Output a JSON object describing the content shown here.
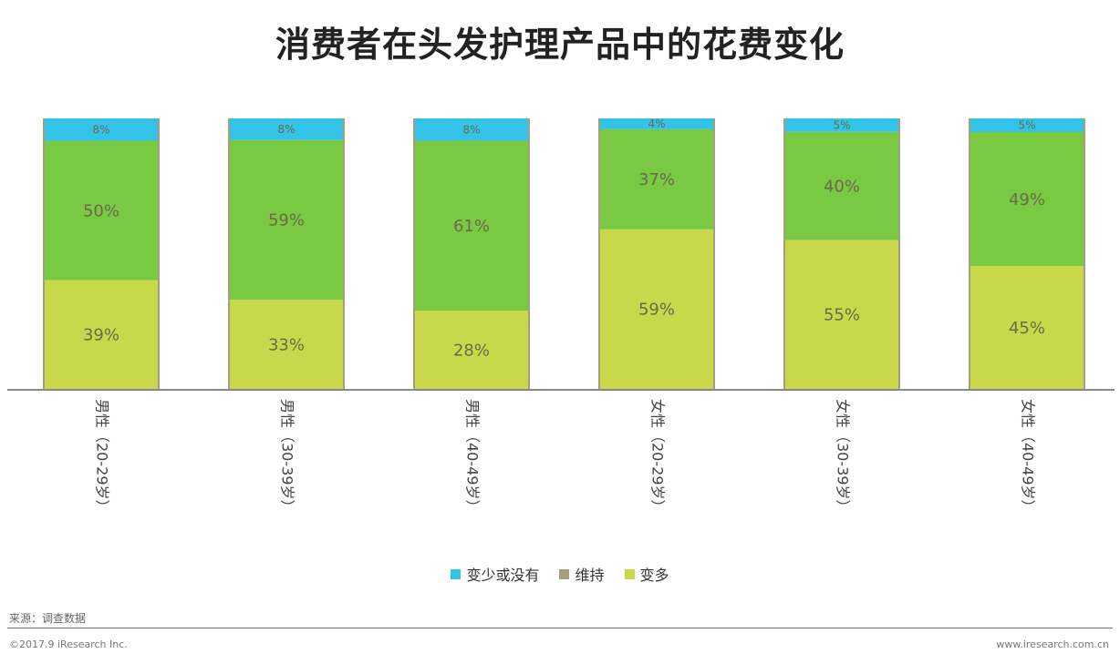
{
  "chart_data": {
    "type": "bar",
    "stacked": true,
    "title": "消费者在头发护理产品中的花费变化",
    "categories": [
      "男性（20-29岁）",
      "男性（30-39岁）",
      "男性（40-49岁）",
      "女性（20-29岁）",
      "女性（30-39岁）",
      "女性（40-49岁）"
    ],
    "series": [
      {
        "name": "变多",
        "color": "#c9d84a",
        "values": [
          39,
          33,
          28,
          59,
          55,
          45
        ]
      },
      {
        "name": "维持",
        "color": "#7ac943",
        "values": [
          50,
          59,
          61,
          37,
          40,
          49
        ]
      },
      {
        "name": "变少或没有",
        "color": "#33c3e8",
        "values": [
          8,
          8,
          8,
          4,
          5,
          5
        ]
      }
    ],
    "labels": [
      [
        "39%",
        "33%",
        "28%",
        "59%",
        "55%",
        "45%"
      ],
      [
        "50%",
        "59%",
        "61%",
        "37%",
        "40%",
        "49%"
      ],
      [
        "8%",
        "8%",
        "8%",
        "4%",
        "5%",
        "5%"
      ]
    ],
    "ylim": [
      0,
      100
    ],
    "legend_position": "bottom"
  },
  "source": "来源：调查数据",
  "footer_left": "©2017.9 iResearch Inc.",
  "footer_right": "www.iresearch.com.cn"
}
